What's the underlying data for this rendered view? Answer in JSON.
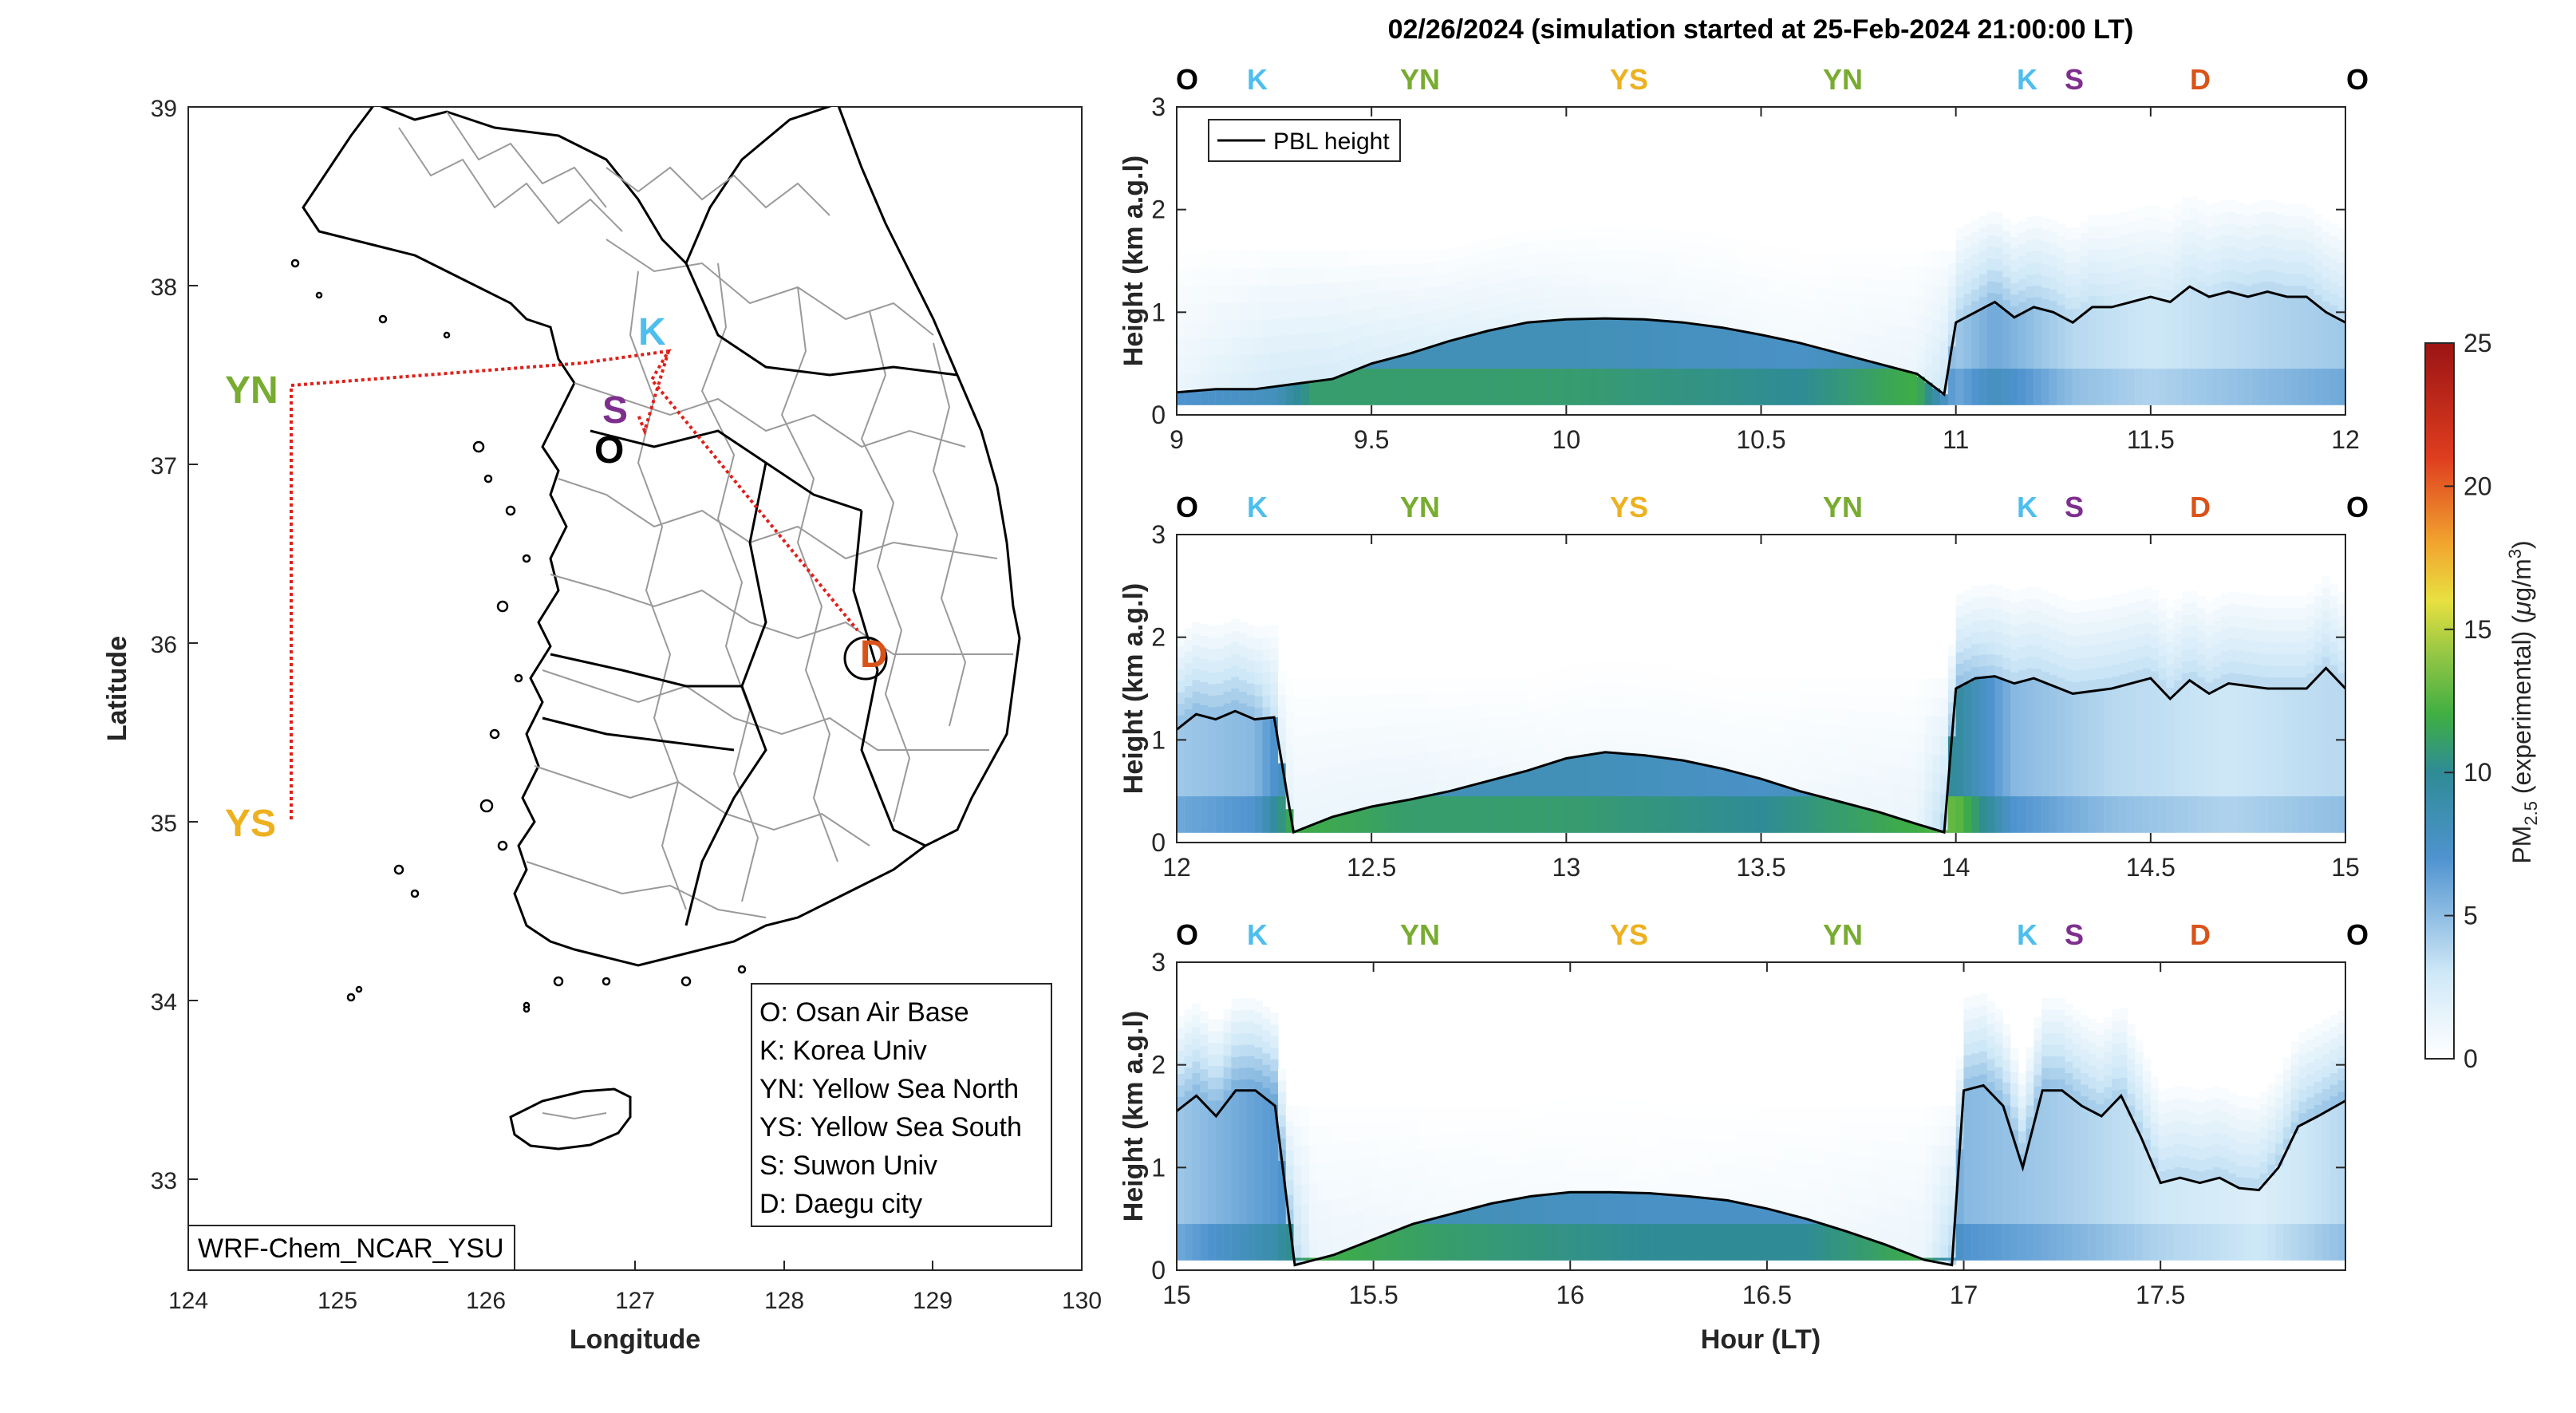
{
  "figure": {
    "title": "02/26/2024 (simulation started at 25-Feb-2024 21:00:00 LT)",
    "colors": {
      "O": "#000000",
      "K": "#4DBEEE",
      "YN": "#77AC30",
      "YS": "#EDB120",
      "S": "#7E2F8E",
      "D": "#D95319",
      "track": "#e0201a",
      "pbl": "#000000"
    }
  },
  "map": {
    "xlabel": "Longitude",
    "ylabel": "Latitude",
    "xticks": [
      "124",
      "125",
      "126",
      "127",
      "128",
      "129",
      "130"
    ],
    "yticks": [
      "39",
      "38",
      "37",
      "36",
      "35",
      "34",
      "33"
    ],
    "model_label": "WRF-Chem_NCAR_YSU",
    "legend": [
      "O: Osan Air Base",
      "K: Korea Univ",
      "YN: Yellow Sea North",
      "YS: Yellow Sea South",
      "S: Suwon Univ",
      "D: Daegu city"
    ],
    "sites": [
      {
        "code": "YN",
        "lon": 124.7,
        "lat": 37.45
      },
      {
        "code": "YS",
        "lon": 124.7,
        "lat": 35.05
      },
      {
        "code": "K",
        "lon": 127.03,
        "lat": 37.59
      },
      {
        "code": "S",
        "lon": 126.97,
        "lat": 37.3
      },
      {
        "code": "O",
        "lon": 127.03,
        "lat": 37.09
      },
      {
        "code": "D",
        "lon": 128.6,
        "lat": 35.87
      }
    ]
  },
  "panels_text": {
    "ylabel": "Height (km a.g.l)",
    "xlabel": "Hour (LT)",
    "pbl_legend": "PBL height",
    "site_order": [
      "O",
      "K",
      "YN",
      "YS",
      "YN",
      "K",
      "S",
      "D",
      "O"
    ],
    "yticks": [
      "0",
      "1",
      "2",
      "3"
    ]
  },
  "colorbar": {
    "label_main": "PM",
    "label_sub": "2.5",
    "label_rest": " (experimental) (",
    "label_mu": "μ",
    "label_unit": "g/m",
    "label_sup": "3",
    "label_close": ")",
    "ticks": [
      "0",
      "5",
      "10",
      "15",
      "20",
      "25"
    ],
    "range": [
      0,
      25
    ]
  },
  "chart_data": [
    {
      "type": "heatmap",
      "title": "02/26/2024 (simulation started at 25-Feb-2024 21:00:00 LT)",
      "xlim": [
        9,
        12
      ],
      "ylim": [
        0,
        3
      ],
      "xticks": [
        "9",
        "9.5",
        "10",
        "10.5",
        "11",
        "11.5",
        "12"
      ],
      "series": [
        {
          "name": "PBL height",
          "x": [
            9.0,
            9.1,
            9.2,
            9.3,
            9.4,
            9.5,
            9.6,
            9.7,
            9.8,
            9.9,
            10.0,
            10.1,
            10.2,
            10.3,
            10.4,
            10.5,
            10.6,
            10.7,
            10.8,
            10.9,
            10.97,
            11.0,
            11.05,
            11.1,
            11.15,
            11.2,
            11.25,
            11.3,
            11.35,
            11.4,
            11.45,
            11.5,
            11.55,
            11.6,
            11.65,
            11.7,
            11.75,
            11.8,
            11.85,
            11.9,
            11.95,
            12.0
          ],
          "y": [
            0.22,
            0.25,
            0.25,
            0.3,
            0.35,
            0.5,
            0.6,
            0.72,
            0.82,
            0.9,
            0.93,
            0.94,
            0.93,
            0.9,
            0.85,
            0.78,
            0.7,
            0.6,
            0.5,
            0.4,
            0.2,
            0.9,
            1.0,
            1.1,
            0.95,
            1.05,
            1.0,
            0.9,
            1.05,
            1.05,
            1.1,
            1.15,
            1.1,
            1.25,
            1.15,
            1.2,
            1.15,
            1.2,
            1.15,
            1.15,
            1.0,
            0.9
          ]
        }
      ],
      "pm_x": [
        9.0,
        9.25,
        9.35,
        10.0,
        10.6,
        10.9,
        11.0,
        11.1,
        11.3,
        11.5,
        11.75,
        12.0
      ],
      "pm_surface": [
        7,
        8,
        11,
        11,
        10,
        12,
        6,
        8,
        5,
        4,
        5,
        6
      ],
      "pm_aloft": [
        1,
        2,
        2,
        1,
        0.5,
        1,
        3,
        4,
        3,
        2,
        3,
        3
      ]
    },
    {
      "type": "heatmap",
      "xlim": [
        12,
        15
      ],
      "ylim": [
        0,
        3
      ],
      "xticks": [
        "12",
        "12.5",
        "13",
        "13.5",
        "14",
        "14.5",
        "15"
      ],
      "series": [
        {
          "name": "PBL height",
          "x": [
            12.0,
            12.05,
            12.1,
            12.15,
            12.2,
            12.25,
            12.3,
            12.4,
            12.5,
            12.6,
            12.7,
            12.8,
            12.9,
            13.0,
            13.1,
            13.2,
            13.3,
            13.4,
            13.5,
            13.6,
            13.7,
            13.8,
            13.9,
            13.97,
            14.0,
            14.05,
            14.1,
            14.15,
            14.2,
            14.3,
            14.4,
            14.5,
            14.55,
            14.6,
            14.65,
            14.7,
            14.8,
            14.9,
            14.95,
            15.0
          ],
          "y": [
            1.1,
            1.25,
            1.2,
            1.28,
            1.2,
            1.22,
            0.1,
            0.25,
            0.35,
            0.42,
            0.5,
            0.6,
            0.7,
            0.82,
            0.88,
            0.85,
            0.8,
            0.72,
            0.62,
            0.5,
            0.4,
            0.3,
            0.18,
            0.1,
            1.5,
            1.6,
            1.62,
            1.55,
            1.6,
            1.45,
            1.5,
            1.6,
            1.4,
            1.58,
            1.45,
            1.55,
            1.5,
            1.5,
            1.7,
            1.5
          ]
        }
      ],
      "pm_x": [
        12.0,
        12.2,
        12.3,
        12.6,
        13.0,
        13.5,
        13.9,
        14.0,
        14.15,
        14.4,
        14.7,
        15.0
      ],
      "pm_surface": [
        6,
        7,
        12,
        11,
        11,
        10,
        12,
        13,
        7,
        5,
        4,
        5
      ],
      "pm_aloft": [
        4,
        4,
        1,
        1,
        0.5,
        0.5,
        1,
        4,
        3,
        3,
        3,
        3
      ]
    },
    {
      "type": "heatmap",
      "xlim": [
        15,
        17.97
      ],
      "ylim": [
        0,
        3
      ],
      "xticks": [
        "15",
        "15.5",
        "16",
        "16.5",
        "17",
        "17.5"
      ],
      "series": [
        {
          "name": "PBL height",
          "x": [
            15.0,
            15.05,
            15.1,
            15.15,
            15.2,
            15.25,
            15.3,
            15.4,
            15.5,
            15.6,
            15.7,
            15.8,
            15.9,
            16.0,
            16.1,
            16.2,
            16.3,
            16.4,
            16.5,
            16.6,
            16.7,
            16.8,
            16.9,
            16.97,
            17.0,
            17.05,
            17.1,
            17.15,
            17.2,
            17.25,
            17.3,
            17.35,
            17.4,
            17.45,
            17.5,
            17.55,
            17.6,
            17.65,
            17.7,
            17.75,
            17.8,
            17.85,
            17.9,
            17.97
          ],
          "y": [
            1.55,
            1.7,
            1.5,
            1.75,
            1.75,
            1.6,
            0.05,
            0.15,
            0.3,
            0.45,
            0.55,
            0.65,
            0.72,
            0.76,
            0.76,
            0.75,
            0.72,
            0.68,
            0.6,
            0.5,
            0.38,
            0.25,
            0.1,
            0.05,
            1.75,
            1.8,
            1.6,
            1.0,
            1.75,
            1.75,
            1.6,
            1.5,
            1.7,
            1.3,
            0.85,
            0.9,
            0.85,
            0.9,
            0.8,
            0.78,
            1.0,
            1.4,
            1.5,
            1.65
          ]
        }
      ],
      "pm_x": [
        15.0,
        15.25,
        15.35,
        15.7,
        16.2,
        16.6,
        16.9,
        17.0,
        17.2,
        17.5,
        17.75,
        17.97
      ],
      "pm_surface": [
        6,
        9,
        12,
        11,
        10,
        10,
        12,
        7,
        6,
        4,
        3,
        5
      ],
      "pm_aloft": [
        4,
        5,
        1,
        0.5,
        0.3,
        0.5,
        1,
        4,
        4,
        3,
        3,
        4
      ]
    }
  ]
}
